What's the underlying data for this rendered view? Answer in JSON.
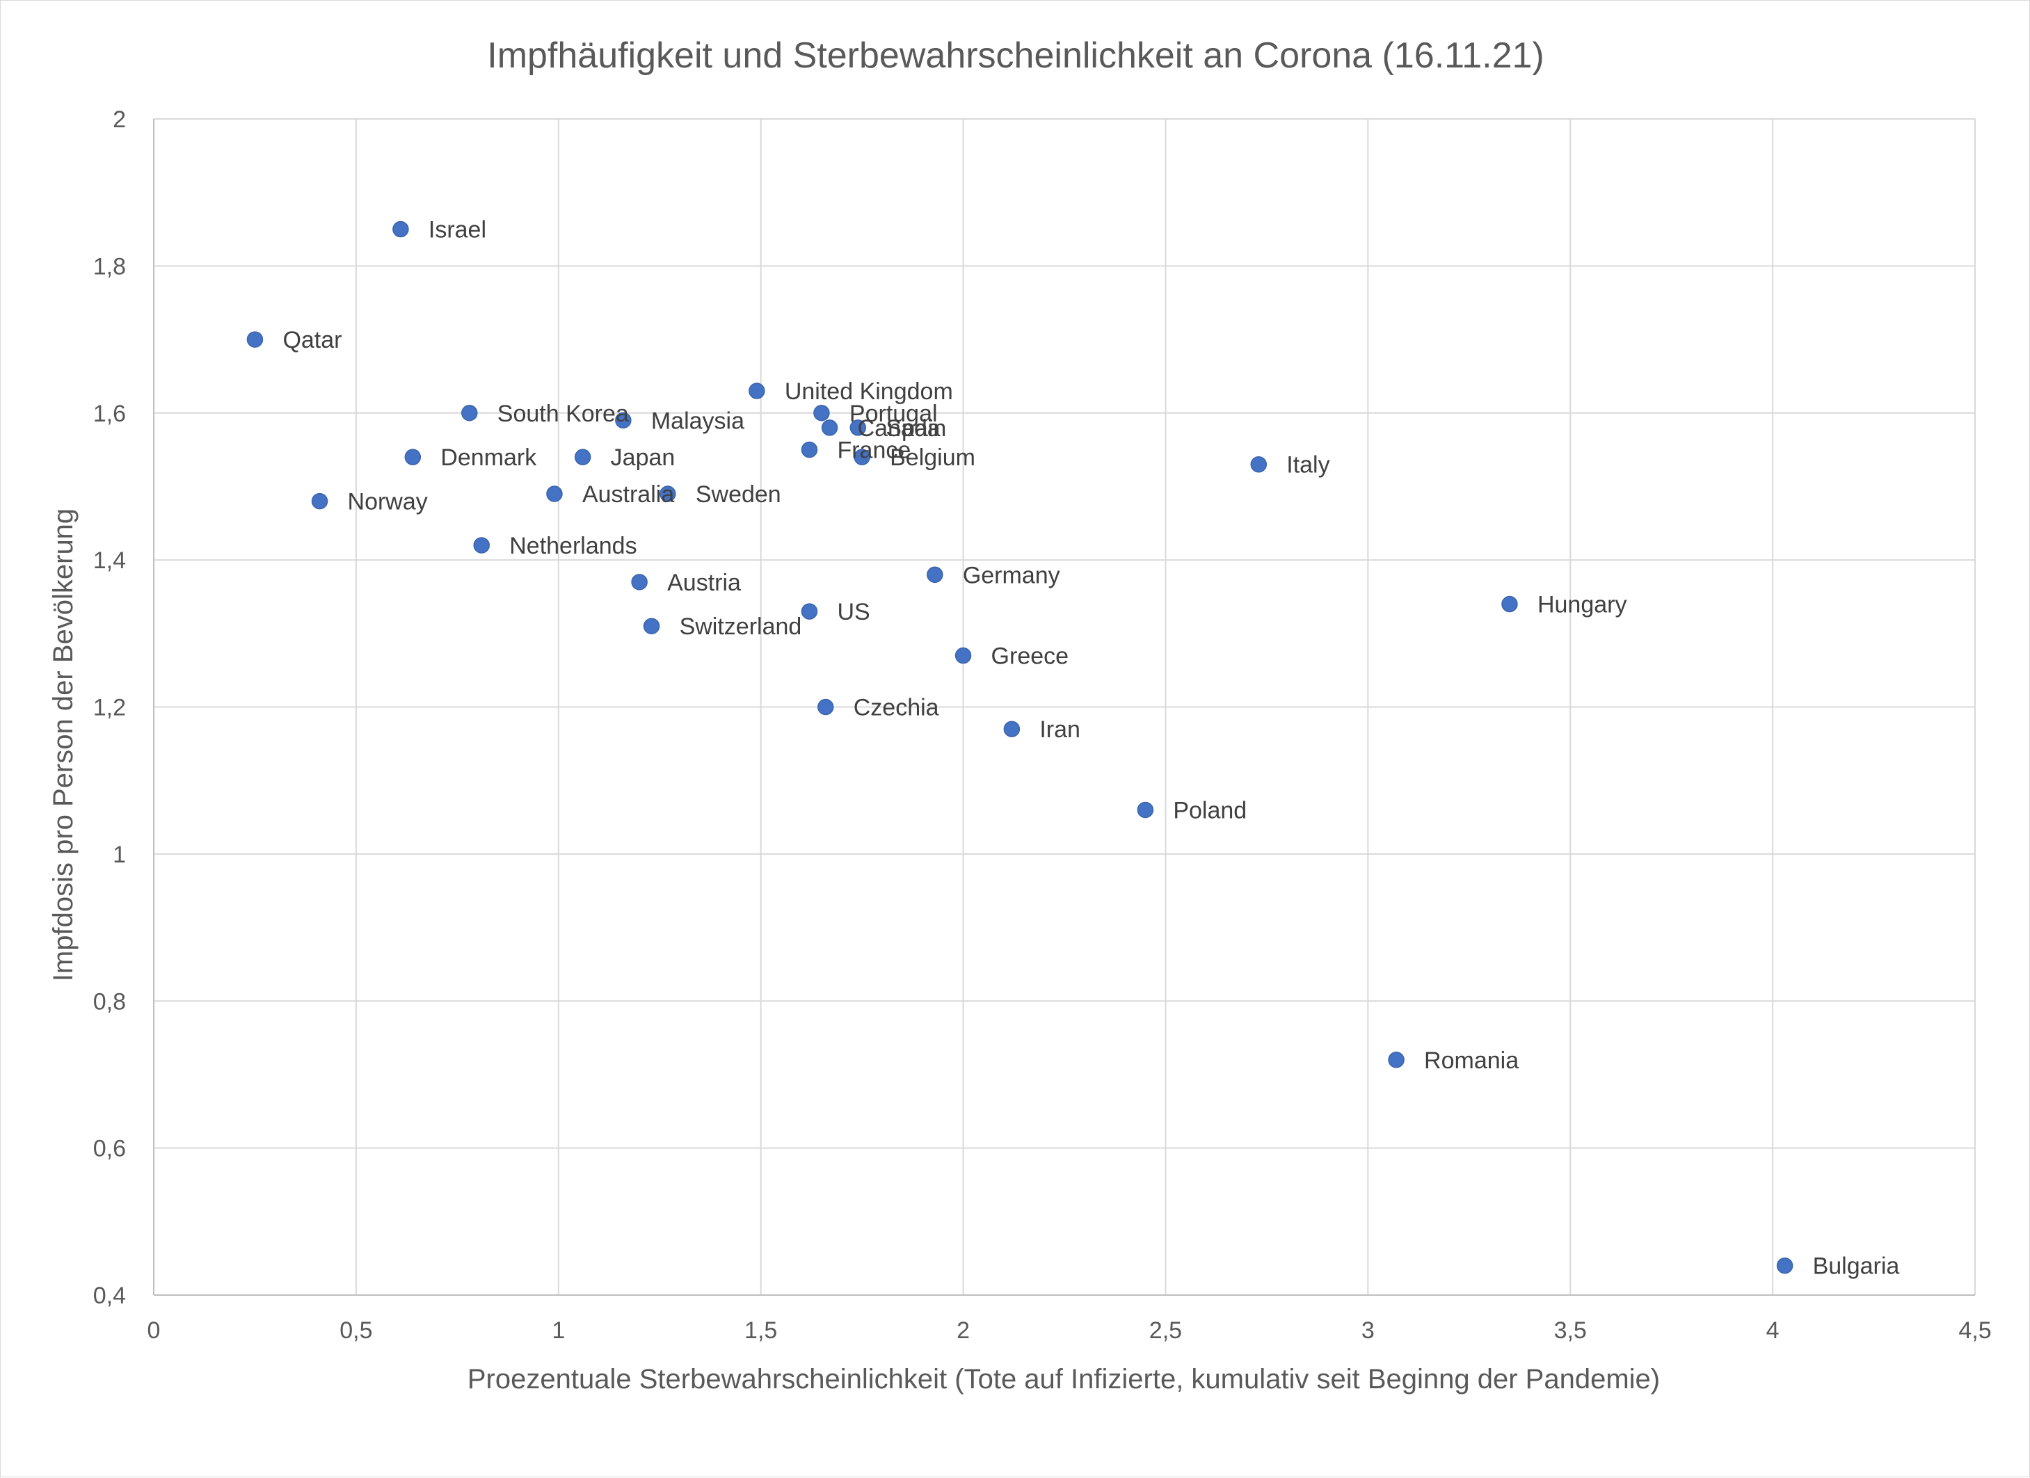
{
  "chart_data": {
    "type": "scatter",
    "title": "Impfhäufigkeit und Sterbewahrscheinlichkeit an Corona (16.11.21)",
    "xlabel": "Proezentuale Sterbewahrscheinlichkeit (Tote auf Infizierte, kumulativ seit Beginng der Pandemie)",
    "ylabel": "Impfdosis pro Person der Bevölkerung",
    "xlim": [
      0,
      4.5
    ],
    "ylim": [
      0.4,
      2
    ],
    "x_ticks": [
      0,
      0.5,
      1,
      1.5,
      2,
      2.5,
      3,
      3.5,
      4,
      4.5
    ],
    "x_tick_labels": [
      "0",
      "0,5",
      "1",
      "1,5",
      "2",
      "2,5",
      "3",
      "3,5",
      "4",
      "4,5"
    ],
    "y_ticks": [
      0.4,
      0.6,
      0.8,
      1,
      1.2,
      1.4,
      1.6,
      1.8,
      2
    ],
    "y_tick_labels": [
      "0,4",
      "0,6",
      "0,8",
      "1",
      "1,2",
      "1,4",
      "1,6",
      "1,8",
      "2"
    ],
    "grid": true,
    "legend": "none",
    "marker_color": "#4472C4",
    "points": [
      {
        "label": "Israel",
        "x": 0.61,
        "y": 1.85
      },
      {
        "label": "Qatar",
        "x": 0.25,
        "y": 1.7
      },
      {
        "label": "United Kingdom",
        "x": 1.49,
        "y": 1.63
      },
      {
        "label": "South Korea",
        "x": 0.78,
        "y": 1.6
      },
      {
        "label": "Malaysia",
        "x": 1.16,
        "y": 1.59
      },
      {
        "label": "Portugal",
        "x": 1.65,
        "y": 1.6
      },
      {
        "label": "Canada",
        "x": 1.67,
        "y": 1.58
      },
      {
        "label": "Spain",
        "x": 1.74,
        "y": 1.58
      },
      {
        "label": "France",
        "x": 1.62,
        "y": 1.55
      },
      {
        "label": "Belgium",
        "x": 1.75,
        "y": 1.54
      },
      {
        "label": "Denmark",
        "x": 0.64,
        "y": 1.54
      },
      {
        "label": "Japan",
        "x": 1.06,
        "y": 1.54
      },
      {
        "label": "Italy",
        "x": 2.73,
        "y": 1.53
      },
      {
        "label": "Norway",
        "x": 0.41,
        "y": 1.48
      },
      {
        "label": "Australia",
        "x": 0.99,
        "y": 1.49
      },
      {
        "label": "Sweden",
        "x": 1.27,
        "y": 1.49
      },
      {
        "label": "Netherlands",
        "x": 0.81,
        "y": 1.42
      },
      {
        "label": "Austria",
        "x": 1.2,
        "y": 1.37
      },
      {
        "label": "Germany",
        "x": 1.93,
        "y": 1.38
      },
      {
        "label": "US",
        "x": 1.62,
        "y": 1.33
      },
      {
        "label": "Hungary",
        "x": 3.35,
        "y": 1.34
      },
      {
        "label": "Switzerland",
        "x": 1.23,
        "y": 1.31
      },
      {
        "label": "Greece",
        "x": 2.0,
        "y": 1.27
      },
      {
        "label": "Czechia",
        "x": 1.66,
        "y": 1.2
      },
      {
        "label": "Iran",
        "x": 2.12,
        "y": 1.17
      },
      {
        "label": "Poland",
        "x": 2.45,
        "y": 1.06
      },
      {
        "label": "Romania",
        "x": 3.07,
        "y": 0.72
      },
      {
        "label": "Bulgaria",
        "x": 4.03,
        "y": 0.44
      }
    ]
  }
}
